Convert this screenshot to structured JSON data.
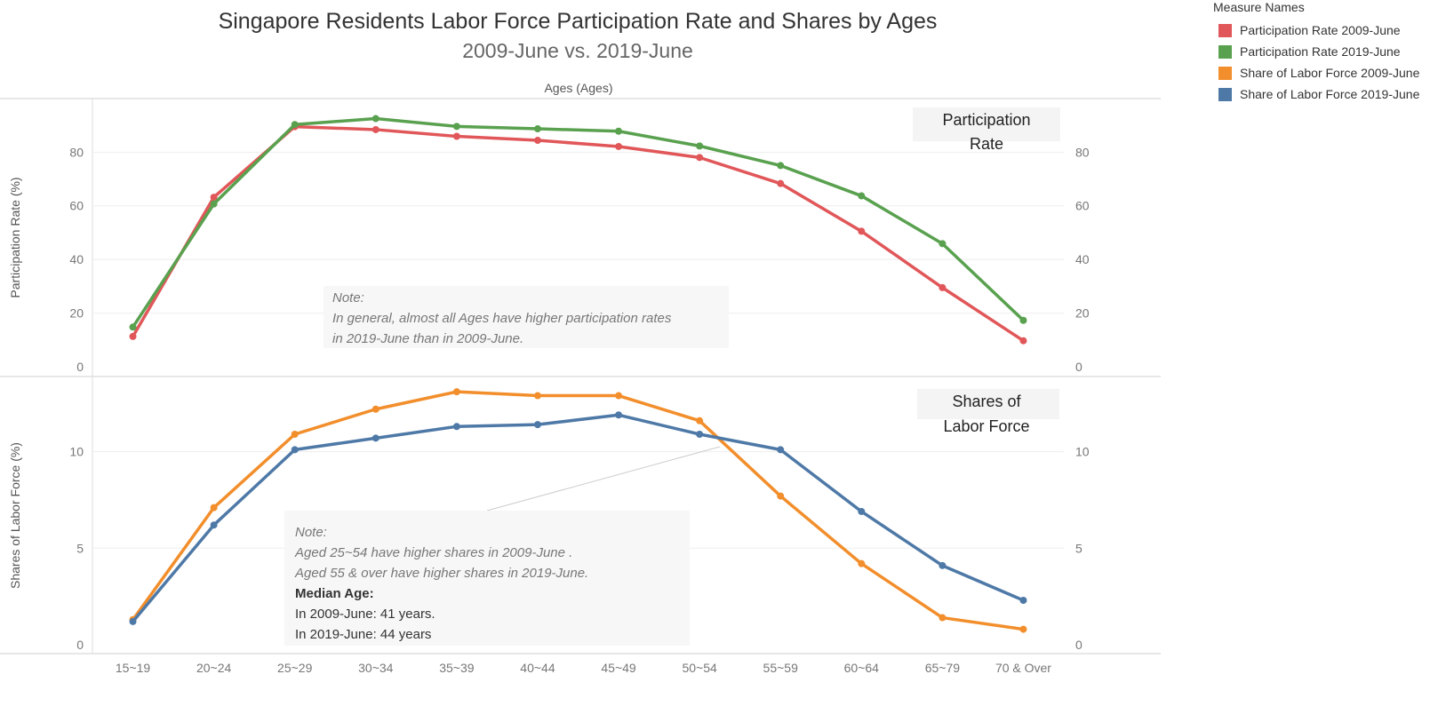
{
  "header": {
    "title": "Singapore Residents Labor Force Participation Rate and Shares by Ages",
    "subtitle": "2009-June vs. 2019-June"
  },
  "legend": {
    "title": "Measure Names",
    "items": [
      {
        "label": "Participation Rate 2009-June",
        "color": "#e15759"
      },
      {
        "label": "Participation Rate 2019-June",
        "color": "#59a14f"
      },
      {
        "label": "Share of Labor Force 2009-June",
        "color": "#f28e2b"
      },
      {
        "label": "Share of Labor Force 2019-June",
        "color": "#4e79a7"
      }
    ]
  },
  "chart_data": {
    "type": "line",
    "xlabel": "Ages (Ages)",
    "categories": [
      "15~19",
      "20~24",
      "25~29",
      "30~34",
      "35~39",
      "40~44",
      "45~49",
      "50~54",
      "55~59",
      "60~64",
      "65~79",
      "70 & Over"
    ],
    "panels": [
      {
        "label": "Participation Rate",
        "ylabel": "Participation Rate (%)",
        "ylim": [
          0,
          95
        ],
        "yticks": [
          0,
          20,
          40,
          60,
          80
        ],
        "grid": true,
        "series": [
          {
            "name": "Participation Rate 2009-June",
            "color": "#e15759",
            "values": [
              11.3,
              63.2,
              89.5,
              88.4,
              85.9,
              84.4,
              82.1,
              78.0,
              68.3,
              50.5,
              29.5,
              9.7
            ]
          },
          {
            "name": "Participation Rate 2019-June",
            "color": "#59a14f",
            "values": [
              14.8,
              60.7,
              90.3,
              92.5,
              89.6,
              88.7,
              87.8,
              82.3,
              75.0,
              63.7,
              45.9,
              17.3
            ]
          }
        ],
        "note": {
          "lines": [
            "Note:",
            "In general, almost all Ages have higher participation rates",
            "in 2019-June than in 2009-June."
          ]
        }
      },
      {
        "label": "Shares of Labor Force",
        "ylabel": "Shares of Labor Force (%)",
        "ylim": [
          0,
          13.2
        ],
        "yticks": [
          0,
          5,
          10
        ],
        "grid": true,
        "series": [
          {
            "name": "Share of Labor Force 2009-June",
            "color": "#f28e2b",
            "values": [
              1.3,
              7.1,
              10.9,
              12.2,
              13.1,
              12.9,
              12.9,
              11.6,
              7.7,
              4.2,
              1.4,
              0.8
            ]
          },
          {
            "name": "Share of Labor Force 2019-June",
            "color": "#4e79a7",
            "values": [
              1.2,
              6.2,
              10.1,
              10.7,
              11.3,
              11.4,
              11.9,
              10.9,
              10.1,
              6.9,
              4.1,
              2.3
            ]
          }
        ],
        "note": {
          "lines_italic": [
            "Note:",
            "Aged 25~54 have higher shares in 2009-June .",
            "Aged 55 & over have higher shares in 2019-June."
          ],
          "bold": "Median Age:",
          "lines_plain": [
            "In 2009-June: 41 years.",
            "In 2019-June: 44 years"
          ]
        }
      }
    ]
  }
}
